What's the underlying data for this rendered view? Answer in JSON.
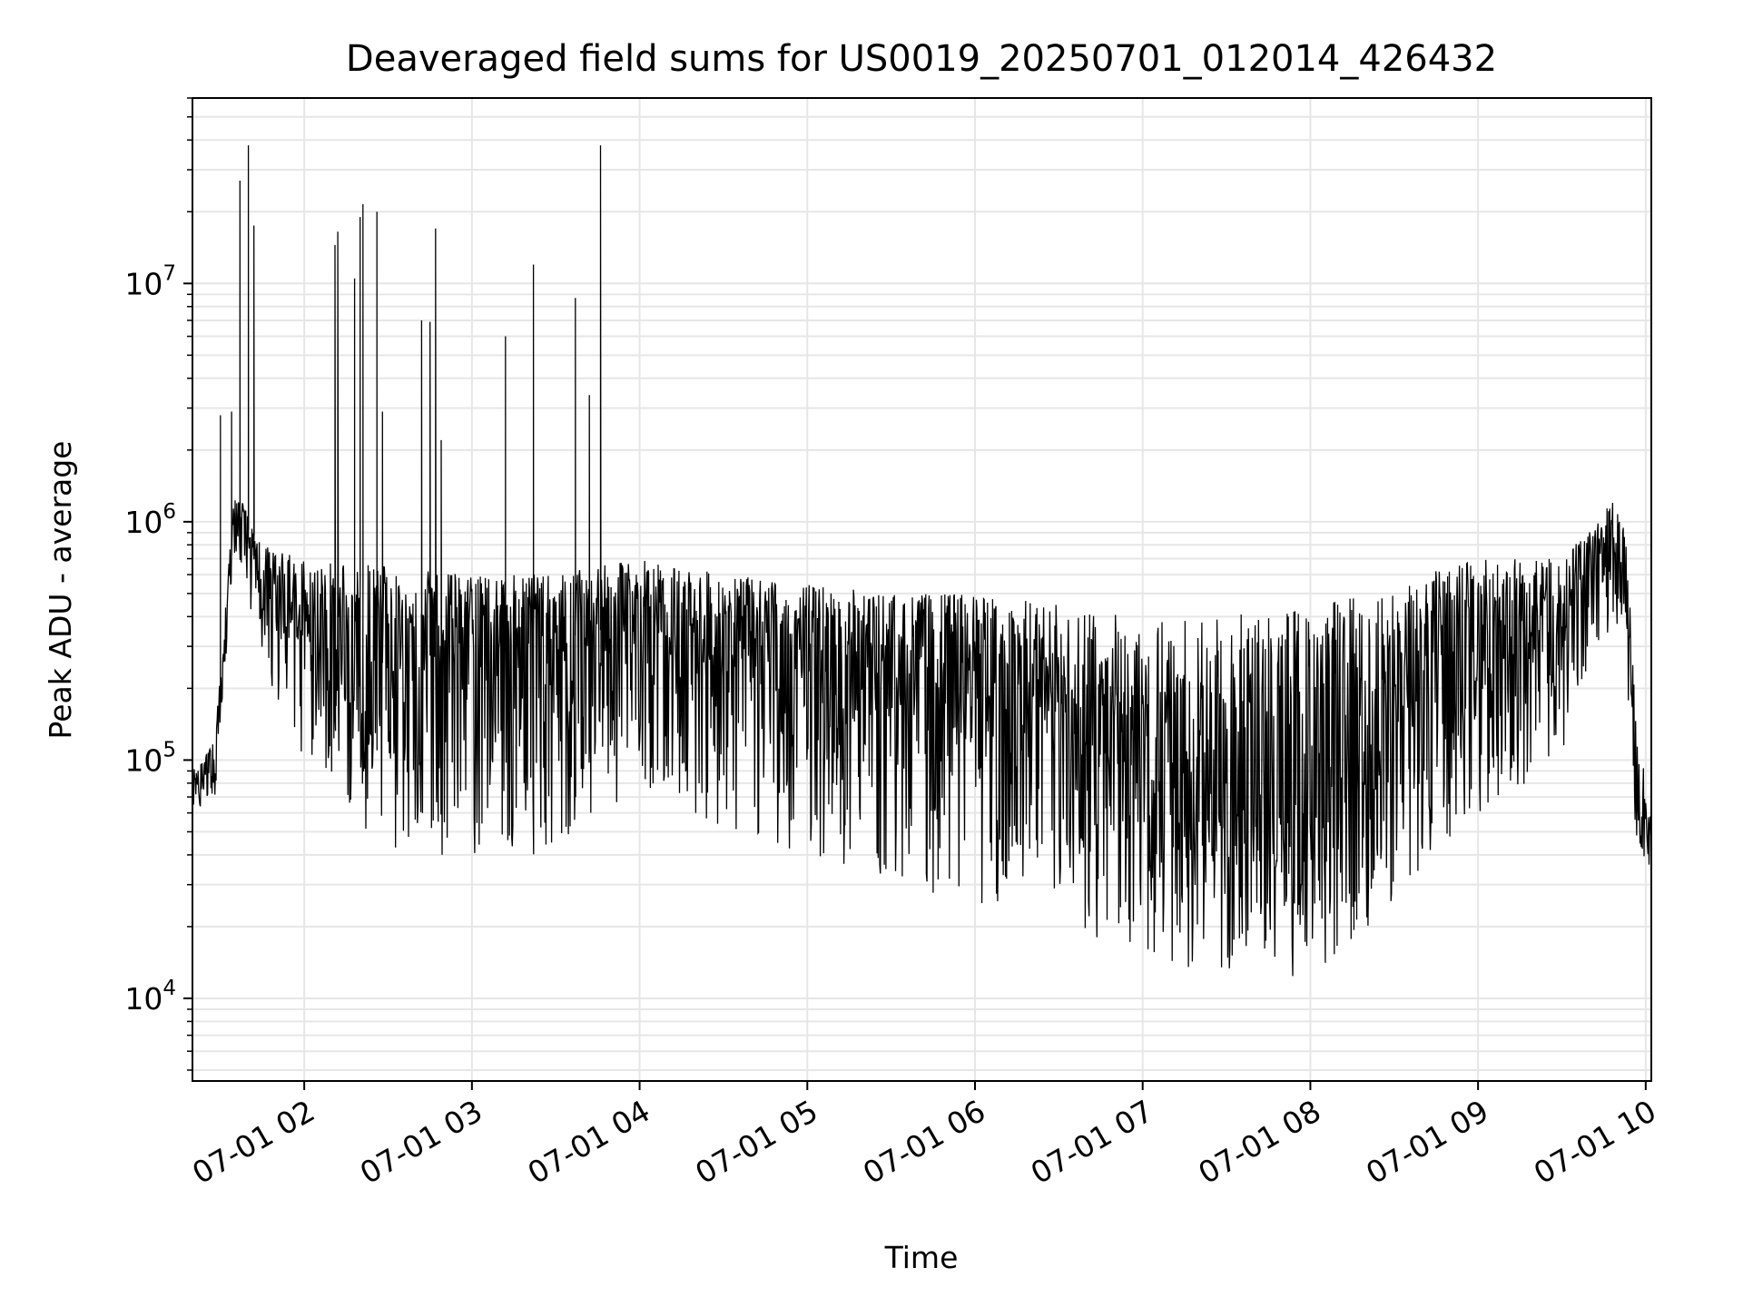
{
  "chart_data": {
    "type": "line",
    "title": "Deaveraged field sums for US0019_20250701_012014_426432",
    "xlabel": "Time",
    "ylabel": "Peak ADU - average",
    "x_axis": {
      "scale": "time",
      "range": [
        "2025-07-01 01:20",
        "2025-07-01 10:02"
      ],
      "tick_labels": [
        "07-01 02",
        "07-01 03",
        "07-01 04",
        "07-01 05",
        "07-01 06",
        "07-01 07",
        "07-01 08",
        "07-01 09",
        "07-01 10"
      ],
      "tick_label_rotation_deg": 30
    },
    "y_axis": {
      "scale": "log",
      "range": [
        4500,
        60000000
      ],
      "major_ticks": [
        10000,
        100000,
        1000000,
        10000000
      ],
      "tick_labels": [
        {
          "base": "10",
          "exp": "4"
        },
        {
          "base": "10",
          "exp": "5"
        },
        {
          "base": "10",
          "exp": "6"
        },
        {
          "base": "10",
          "exp": "7"
        }
      ]
    },
    "grid": {
      "major": true,
      "minor": true,
      "color": "#e6e6e6"
    },
    "series": [
      {
        "color": "#000000",
        "envelope_time": [
          "2025-07-01 01:20",
          "2025-07-01 01:28",
          "2025-07-01 01:35",
          "2025-07-01 01:38",
          "2025-07-01 01:45",
          "2025-07-01 02:00",
          "2025-07-01 02:30",
          "2025-07-01 03:00",
          "2025-07-01 03:30",
          "2025-07-01 04:00",
          "2025-07-01 04:30",
          "2025-07-01 05:00",
          "2025-07-01 05:30",
          "2025-07-01 06:00",
          "2025-07-01 06:30",
          "2025-07-01 07:00",
          "2025-07-01 07:30",
          "2025-07-01 08:00",
          "2025-07-01 08:30",
          "2025-07-01 09:00",
          "2025-07-01 09:30",
          "2025-07-01 09:45",
          "2025-07-01 09:52",
          "2025-07-01 09:56",
          "2025-07-01 10:02"
        ],
        "envelope_median": [
          70000,
          90000,
          1000000,
          1100000,
          500000,
          350000,
          250000,
          300000,
          320000,
          380000,
          300000,
          250000,
          230000,
          200000,
          140000,
          90000,
          60000,
          70000,
          150000,
          280000,
          350000,
          600000,
          800000,
          80000,
          35000
        ],
        "envelope_low": [
          60000,
          70000,
          700000,
          600000,
          250000,
          100000,
          40000,
          40000,
          40000,
          80000,
          50000,
          40000,
          30000,
          25000,
          20000,
          15000,
          12000,
          12000,
          25000,
          60000,
          100000,
          300000,
          400000,
          50000,
          30000
        ],
        "envelope_high": [
          90000,
          120000,
          1300000,
          1200000,
          800000,
          700000,
          650000,
          600000,
          600000,
          700000,
          600000,
          550000,
          500000,
          500000,
          450000,
          400000,
          400000,
          450000,
          550000,
          700000,
          700000,
          1100000,
          1400000,
          200000,
          60000
        ],
        "spikes": [
          {
            "time": "2025-07-01 01:30",
            "value": 2800000
          },
          {
            "time": "2025-07-01 01:34",
            "value": 2900000
          },
          {
            "time": "2025-07-01 01:37",
            "value": 27000000
          },
          {
            "time": "2025-07-01 01:40",
            "value": 38000000
          },
          {
            "time": "2025-07-01 01:42",
            "value": 17500000
          },
          {
            "time": "2025-07-01 02:11",
            "value": 14500000
          },
          {
            "time": "2025-07-01 02:12",
            "value": 16500000
          },
          {
            "time": "2025-07-01 02:18",
            "value": 10500000
          },
          {
            "time": "2025-07-01 02:20",
            "value": 19000000
          },
          {
            "time": "2025-07-01 02:21",
            "value": 21500000
          },
          {
            "time": "2025-07-01 02:26",
            "value": 20000000
          },
          {
            "time": "2025-07-01 02:28",
            "value": 2900000
          },
          {
            "time": "2025-07-01 02:42",
            "value": 7000000
          },
          {
            "time": "2025-07-01 02:45",
            "value": 6900000
          },
          {
            "time": "2025-07-01 02:47",
            "value": 17000000
          },
          {
            "time": "2025-07-01 02:49",
            "value": 2200000
          },
          {
            "time": "2025-07-01 03:12",
            "value": 6000000
          },
          {
            "time": "2025-07-01 03:22",
            "value": 12000000
          },
          {
            "time": "2025-07-01 03:37",
            "value": 8700000
          },
          {
            "time": "2025-07-01 03:42",
            "value": 3400000
          },
          {
            "time": "2025-07-01 03:46",
            "value": 38000000
          }
        ]
      }
    ]
  }
}
